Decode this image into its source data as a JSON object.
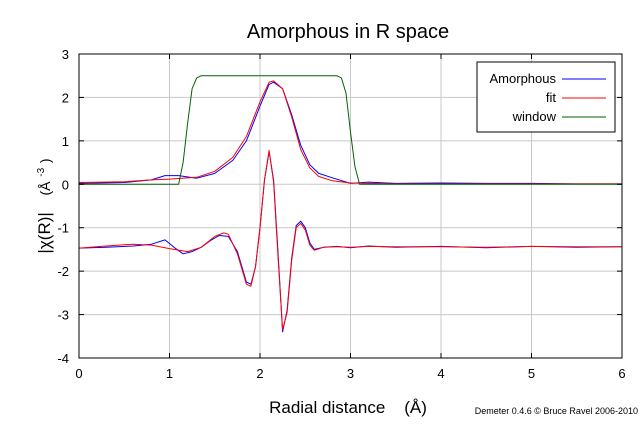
{
  "chart_data": {
    "type": "line",
    "title": "Amorphous in R space",
    "xlabel": "Radial distance    (Å)",
    "ylabel_main": "|χ(R)|",
    "ylabel_unit": "(Å",
    "ylabel_exp": "-3",
    "ylabel_close": ")",
    "xlim": [
      0,
      6
    ],
    "ylim": [
      -4,
      3
    ],
    "xticks": [
      0,
      1,
      2,
      3,
      4,
      5,
      6
    ],
    "yticks": [
      -4,
      -3,
      -2,
      -1,
      0,
      1,
      2,
      3
    ],
    "grid": true,
    "legend_position": "top-right",
    "credit": "Demeter 0.4.6 © Bruce Ravel 2006-2010",
    "series": [
      {
        "name": "Amorphous",
        "color": "#0000ff",
        "x": [
          0,
          0.5,
          0.8,
          0.95,
          1.1,
          1.3,
          1.5,
          1.7,
          1.85,
          2.0,
          2.1,
          2.15,
          2.25,
          2.35,
          2.45,
          2.55,
          2.65,
          2.8,
          3.0,
          3.2,
          3.5,
          4.0,
          4.5,
          5.0,
          5.5,
          6.0
        ],
        "y": [
          0.02,
          0.04,
          0.1,
          0.2,
          0.2,
          0.14,
          0.25,
          0.55,
          1.0,
          1.8,
          2.3,
          2.35,
          2.2,
          1.6,
          0.9,
          0.45,
          0.25,
          0.15,
          0.02,
          0.05,
          0.02,
          0.03,
          0.02,
          0.02,
          0.01,
          0.01
        ]
      },
      {
        "name": "fit",
        "color": "#ff0000",
        "x": [
          0,
          0.5,
          0.8,
          1.0,
          1.3,
          1.5,
          1.7,
          1.85,
          2.0,
          2.1,
          2.15,
          2.25,
          2.35,
          2.45,
          2.55,
          2.65,
          2.8,
          3.0,
          3.2,
          3.5,
          4.0,
          5.0,
          6.0
        ],
        "y": [
          0.04,
          0.06,
          0.1,
          0.12,
          0.16,
          0.3,
          0.62,
          1.1,
          1.9,
          2.35,
          2.38,
          2.2,
          1.55,
          0.8,
          0.38,
          0.18,
          0.08,
          0.03,
          0.02,
          0.01,
          0.01,
          0.01,
          0.01
        ]
      },
      {
        "name": "window",
        "color": "#006400",
        "x": [
          0,
          1.1,
          1.15,
          1.2,
          1.25,
          1.3,
          1.35,
          2.85,
          2.9,
          2.95,
          3.0,
          3.05,
          3.1,
          6.0
        ],
        "y": [
          0,
          0,
          0.5,
          1.4,
          2.2,
          2.45,
          2.5,
          2.5,
          2.45,
          2.1,
          1.2,
          0.4,
          0,
          0
        ]
      },
      {
        "name": "",
        "color": "#0000ff",
        "x": [
          0,
          0.3,
          0.6,
          0.8,
          0.95,
          1.05,
          1.15,
          1.25,
          1.35,
          1.45,
          1.55,
          1.65,
          1.75,
          1.85,
          1.9,
          1.95,
          2.0,
          2.05,
          2.1,
          2.15,
          2.2,
          2.25,
          2.3,
          2.35,
          2.4,
          2.45,
          2.5,
          2.55,
          2.6,
          2.7,
          2.85,
          3.0,
          3.2,
          3.5,
          4.0,
          4.5,
          5.0,
          5.5,
          6.0
        ],
        "y": [
          -1.47,
          -1.45,
          -1.42,
          -1.38,
          -1.28,
          -1.45,
          -1.6,
          -1.55,
          -1.45,
          -1.3,
          -1.18,
          -1.2,
          -1.55,
          -2.25,
          -2.3,
          -1.9,
          -1.0,
          0.1,
          0.75,
          0.1,
          -1.6,
          -3.4,
          -2.9,
          -1.7,
          -0.95,
          -0.85,
          -1.0,
          -1.35,
          -1.5,
          -1.45,
          -1.43,
          -1.46,
          -1.42,
          -1.45,
          -1.43,
          -1.46,
          -1.43,
          -1.45,
          -1.44
        ]
      },
      {
        "name": "",
        "color": "#ff0000",
        "x": [
          0,
          0.3,
          0.6,
          0.8,
          1.0,
          1.2,
          1.35,
          1.5,
          1.6,
          1.65,
          1.75,
          1.85,
          1.9,
          1.95,
          2.0,
          2.05,
          2.1,
          2.15,
          2.2,
          2.25,
          2.3,
          2.35,
          2.4,
          2.45,
          2.5,
          2.55,
          2.6,
          2.7,
          2.85,
          3.0,
          3.2,
          3.5,
          4.0,
          4.5,
          5.0,
          5.5,
          6.0
        ],
        "y": [
          -1.47,
          -1.42,
          -1.38,
          -1.4,
          -1.48,
          -1.55,
          -1.45,
          -1.2,
          -1.12,
          -1.15,
          -1.6,
          -2.3,
          -2.35,
          -1.9,
          -1.0,
          0.1,
          0.78,
          0.05,
          -1.7,
          -3.35,
          -2.95,
          -1.75,
          -1.0,
          -0.9,
          -1.05,
          -1.4,
          -1.52,
          -1.45,
          -1.44,
          -1.45,
          -1.43,
          -1.44,
          -1.44,
          -1.45,
          -1.43,
          -1.44,
          -1.44
        ]
      }
    ]
  }
}
